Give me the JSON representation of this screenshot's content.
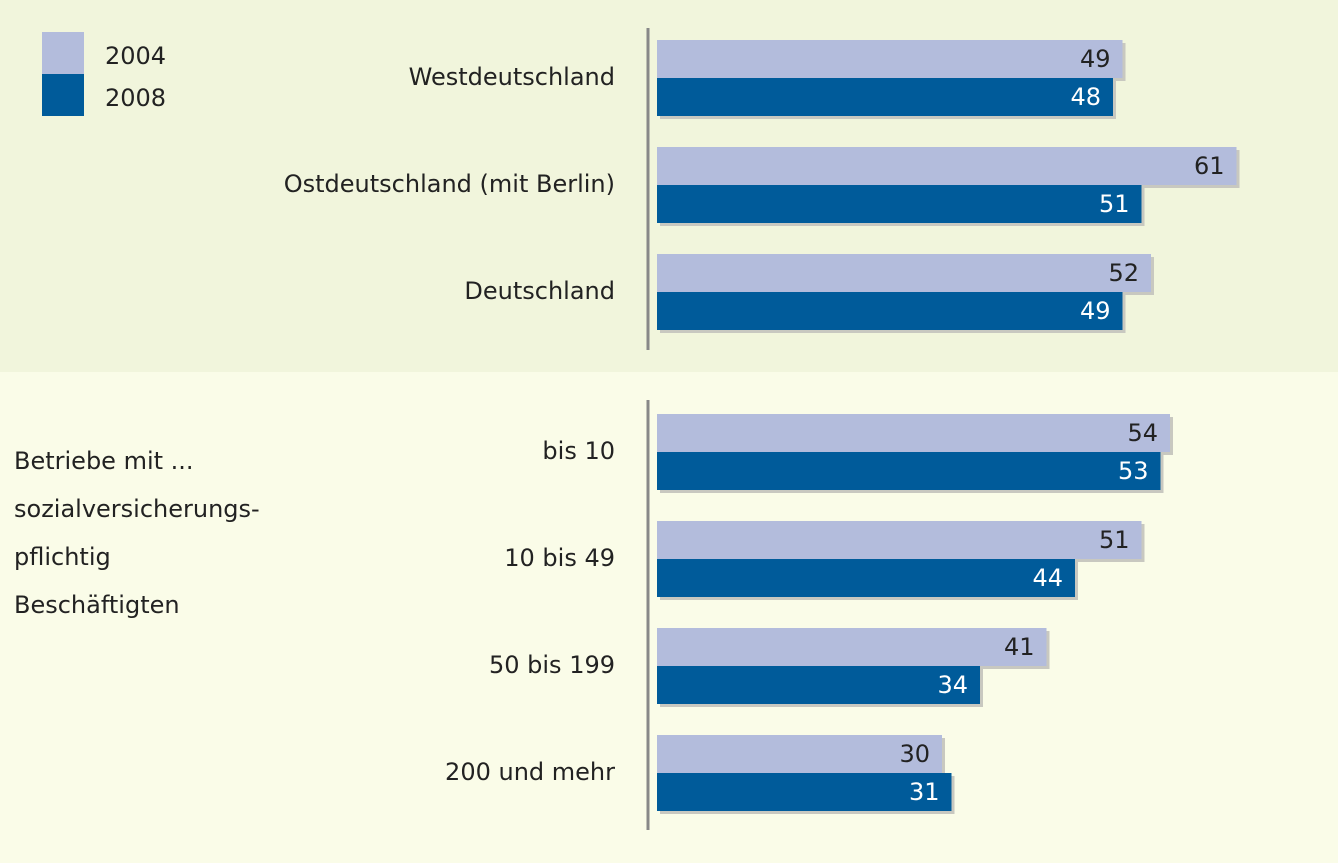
{
  "chart_data": [
    {
      "type": "bar",
      "orientation": "horizontal",
      "categories": [
        "Westdeutschland",
        "Ostdeutschland (mit Berlin)",
        "Deutschland"
      ],
      "series": [
        {
          "name": "2004",
          "color": "#b3bcdc",
          "values": [
            49,
            61,
            52
          ]
        },
        {
          "name": "2008",
          "color": "#005b9a",
          "values": [
            48,
            51,
            49
          ]
        }
      ]
    },
    {
      "type": "bar",
      "orientation": "horizontal",
      "annotation": [
        "Betriebe mit ...",
        "sozialversicherungs-",
        "pflichtig",
        "Beschäftigten"
      ],
      "categories": [
        "bis 10",
        "10 bis 49",
        "50 bis 199",
        "200 und mehr"
      ],
      "series": [
        {
          "color": "#b3bcdc",
          "values": [
            54,
            51,
            41,
            30
          ]
        },
        {
          "color": "#005b9a",
          "values": [
            53,
            44,
            34,
            31
          ]
        }
      ]
    }
  ]
}
